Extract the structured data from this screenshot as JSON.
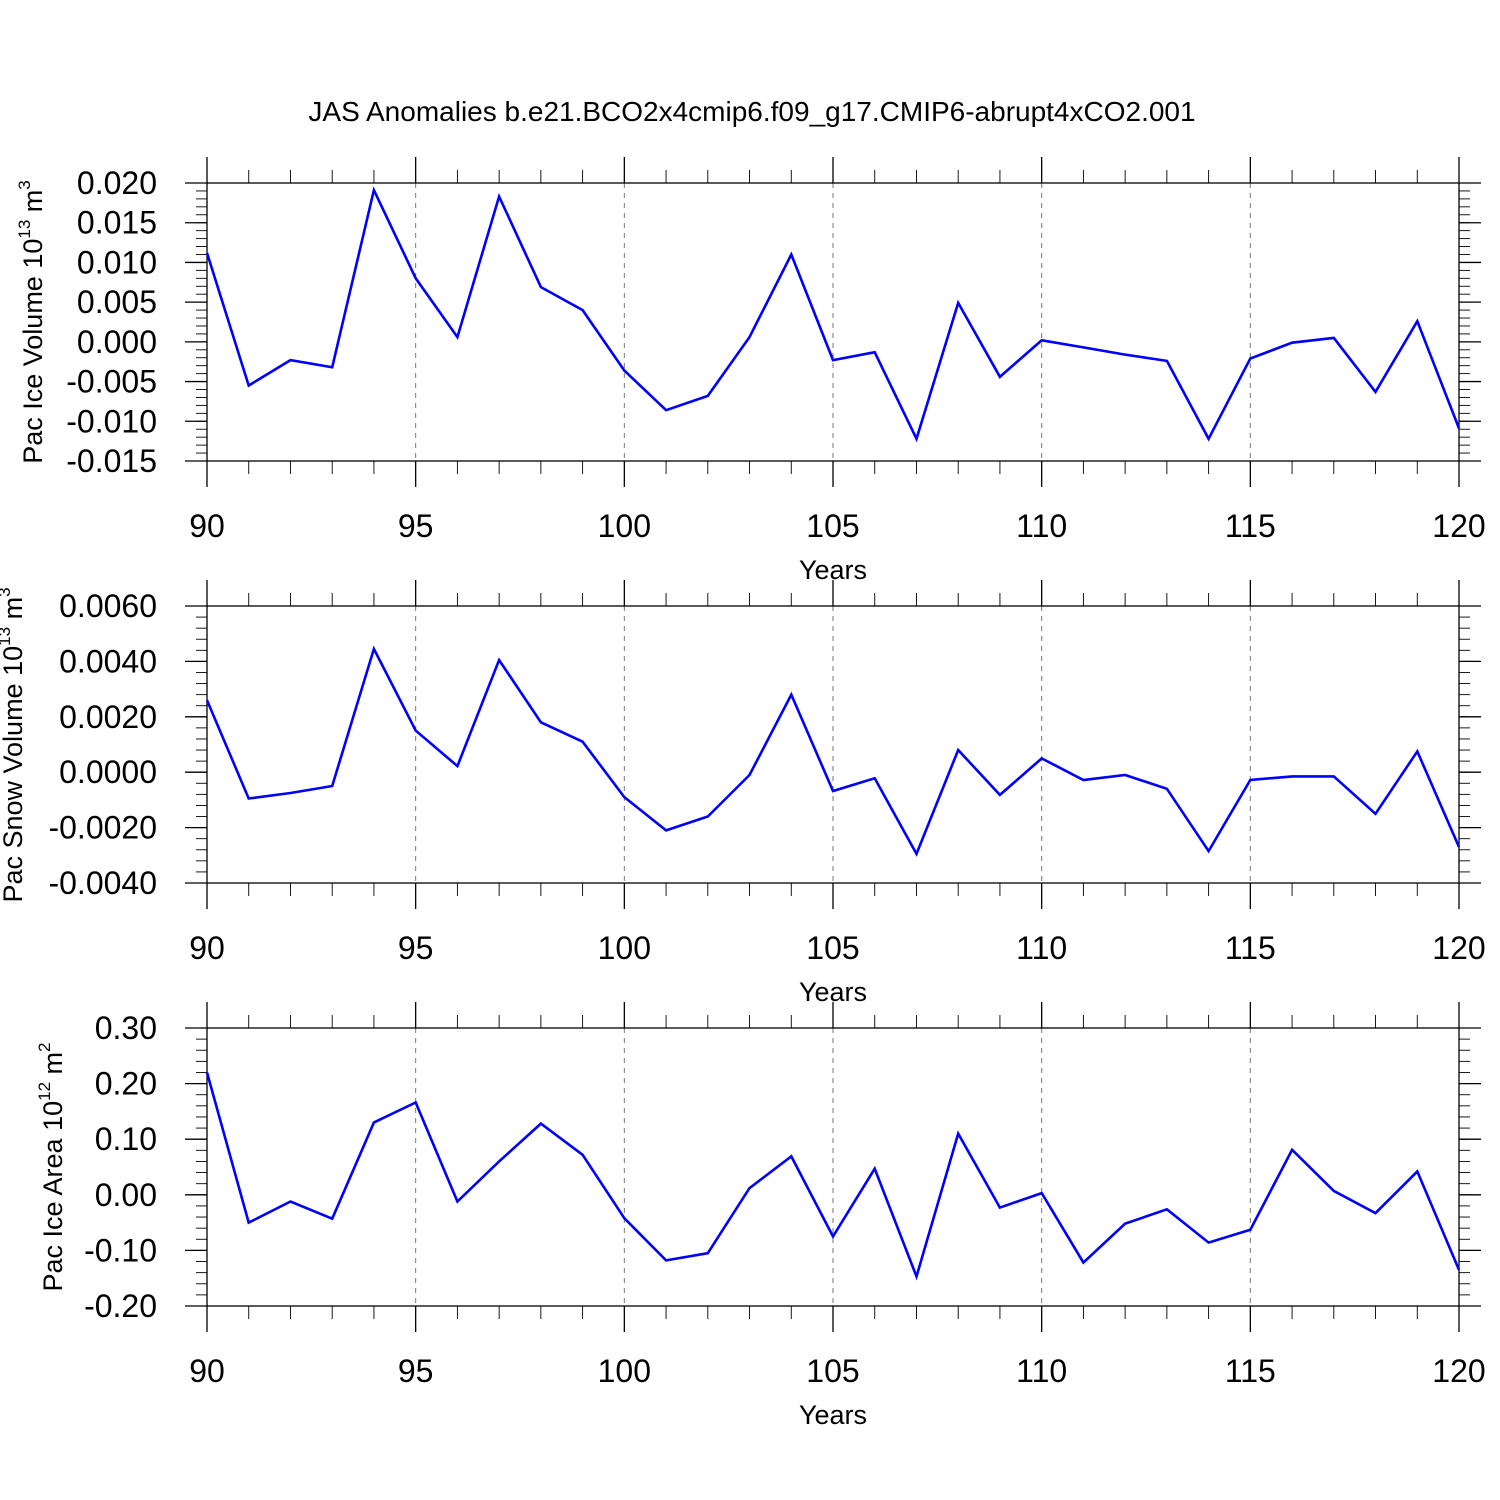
{
  "title": "JAS Anomalies b.e21.BCO2x4cmip6.f09_g17.CMIP6-abrupt4xCO2.001",
  "series_color": "#0000ff",
  "chart_data": [
    {
      "type": "line",
      "ylabel": "Pac Ice Volume",
      "ylabel_unit_base": "10",
      "ylabel_unit_exp": "13",
      "ylabel_unit": "m",
      "ylabel_unit_power": "3",
      "xlabel": "Years",
      "xlim": [
        90,
        120
      ],
      "ylim": [
        -0.015,
        0.02
      ],
      "xticks": [
        90,
        95,
        100,
        105,
        110,
        115,
        120
      ],
      "xtick_labels": [
        "90",
        "95",
        "100",
        "105",
        "110",
        "115",
        "120"
      ],
      "yticks": [
        -0.015,
        -0.01,
        -0.005,
        0,
        0.005,
        0.01,
        0.015,
        0.02
      ],
      "ytick_labels": [
        "-0.015",
        "-0.010",
        "-0.005",
        "0.000",
        "0.005",
        "0.010",
        "0.015",
        "0.020"
      ],
      "y_minor_step": 0.001,
      "x": [
        90,
        91,
        92,
        93,
        94,
        95,
        96,
        97,
        98,
        99,
        100,
        101,
        102,
        103,
        104,
        105,
        106,
        107,
        108,
        109,
        110,
        111,
        112,
        113,
        114,
        115,
        116,
        117,
        118,
        119,
        120
      ],
      "values": [
        0.0112,
        -0.0055,
        -0.0023,
        -0.0032,
        0.0191,
        0.008,
        0.0006,
        0.0183,
        0.0069,
        0.004,
        -0.0036,
        -0.0086,
        -0.0068,
        0.0006,
        0.011,
        -0.0023,
        -0.0013,
        -0.0122,
        0.0049,
        -0.0044,
        0.0002,
        -0.0007,
        -0.0016,
        -0.0024,
        -0.0122,
        -0.0021,
        -0.0001,
        0.0005,
        -0.0063,
        0.0026,
        -0.0109
      ]
    },
    {
      "type": "line",
      "ylabel": "Pac Snow Volume",
      "ylabel_unit_base": "10",
      "ylabel_unit_exp": "13",
      "ylabel_unit": "m",
      "ylabel_unit_power": "3",
      "xlabel": "Years",
      "xlim": [
        90,
        120
      ],
      "ylim": [
        -0.004,
        0.006
      ],
      "xticks": [
        90,
        95,
        100,
        105,
        110,
        115,
        120
      ],
      "xtick_labels": [
        "90",
        "95",
        "100",
        "105",
        "110",
        "115",
        "120"
      ],
      "yticks": [
        -0.004,
        -0.002,
        0,
        0.002,
        0.004,
        0.006
      ],
      "ytick_labels": [
        "-0.0040",
        "-0.0020",
        "0.0000",
        "0.0020",
        "0.0040",
        "0.0060"
      ],
      "y_minor_step": 0.0004,
      "x": [
        90,
        91,
        92,
        93,
        94,
        95,
        96,
        97,
        98,
        99,
        100,
        101,
        102,
        103,
        104,
        105,
        106,
        107,
        108,
        109,
        110,
        111,
        112,
        113,
        114,
        115,
        116,
        117,
        118,
        119,
        120
      ],
      "values": [
        0.0026,
        -0.00095,
        -0.00075,
        -0.0005,
        0.00445,
        0.0015,
        0.00022,
        0.00405,
        0.0018,
        0.0011,
        -0.0009,
        -0.0021,
        -0.0016,
        -0.0001,
        0.0028,
        -0.00068,
        -0.00022,
        -0.00295,
        0.0008,
        -0.00082,
        0.0005,
        -0.00028,
        -0.0001,
        -0.0006,
        -0.00285,
        -0.00028,
        -0.00015,
        -0.00015,
        -0.0015,
        0.00075,
        -0.0027
      ]
    },
    {
      "type": "line",
      "ylabel": "Pac Ice Area",
      "ylabel_unit_base": "10",
      "ylabel_unit_exp": "12",
      "ylabel_unit": "m",
      "ylabel_unit_power": "2",
      "xlabel": "Years",
      "xlim": [
        90,
        120
      ],
      "ylim": [
        -0.2,
        0.3
      ],
      "xticks": [
        90,
        95,
        100,
        105,
        110,
        115,
        120
      ],
      "xtick_labels": [
        "90",
        "95",
        "100",
        "105",
        "110",
        "115",
        "120"
      ],
      "yticks": [
        -0.2,
        -0.1,
        0,
        0.1,
        0.2,
        0.3
      ],
      "ytick_labels": [
        "-0.20",
        "-0.10",
        "0.00",
        "0.10",
        "0.20",
        "0.30"
      ],
      "y_minor_step": 0.02,
      "x": [
        90,
        91,
        92,
        93,
        94,
        95,
        96,
        97,
        98,
        99,
        100,
        101,
        102,
        103,
        104,
        105,
        106,
        107,
        108,
        109,
        110,
        111,
        112,
        113,
        114,
        115,
        116,
        117,
        118,
        119,
        120
      ],
      "values": [
        0.22,
        -0.05,
        -0.012,
        -0.043,
        0.13,
        0.166,
        -0.012,
        0.06,
        0.128,
        0.072,
        -0.042,
        -0.118,
        -0.105,
        0.012,
        0.069,
        -0.075,
        0.047,
        -0.147,
        0.11,
        -0.023,
        0.003,
        -0.122,
        -0.052,
        -0.026,
        -0.086,
        -0.063,
        0.081,
        0.007,
        -0.033,
        0.042,
        -0.135
      ]
    }
  ]
}
